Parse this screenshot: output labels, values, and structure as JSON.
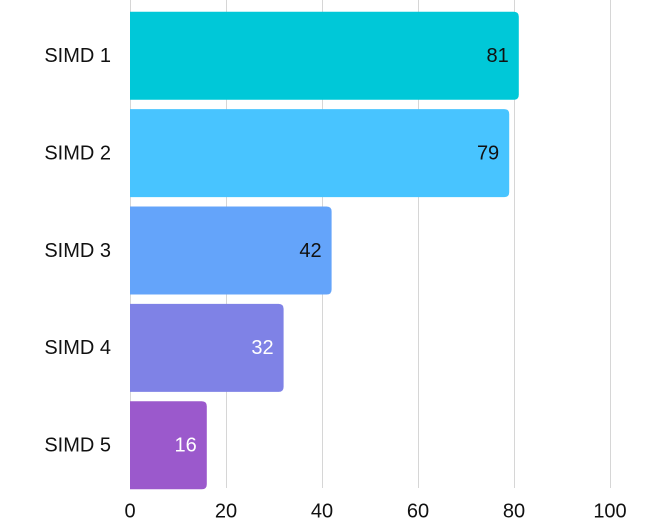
{
  "chart_data": {
    "type": "bar",
    "orientation": "horizontal",
    "title": "",
    "xlabel": "",
    "ylabel": "",
    "categories": [
      "SIMD 1",
      "SIMD 2",
      "SIMD 3",
      "SIMD 4",
      "SIMD 5"
    ],
    "values": [
      81,
      79,
      42,
      32,
      16
    ],
    "data_labels": [
      "81",
      "79",
      "42",
      "32",
      "16"
    ],
    "xlim": [
      0,
      100
    ],
    "x_ticks": [
      0,
      20,
      40,
      60,
      80,
      100
    ],
    "x_tick_labels": [
      "0",
      "20",
      "40",
      "60",
      "80",
      "100"
    ],
    "grid": "vertical",
    "legend": "none",
    "bar_colors": [
      "#00c8d8",
      "#48c4ff",
      "#64a4fa",
      "#7f82e6",
      "#9b59cc"
    ],
    "data_label_colors": [
      "#111111",
      "#111111",
      "#111111",
      "#ffffff",
      "#ffffff"
    ]
  }
}
